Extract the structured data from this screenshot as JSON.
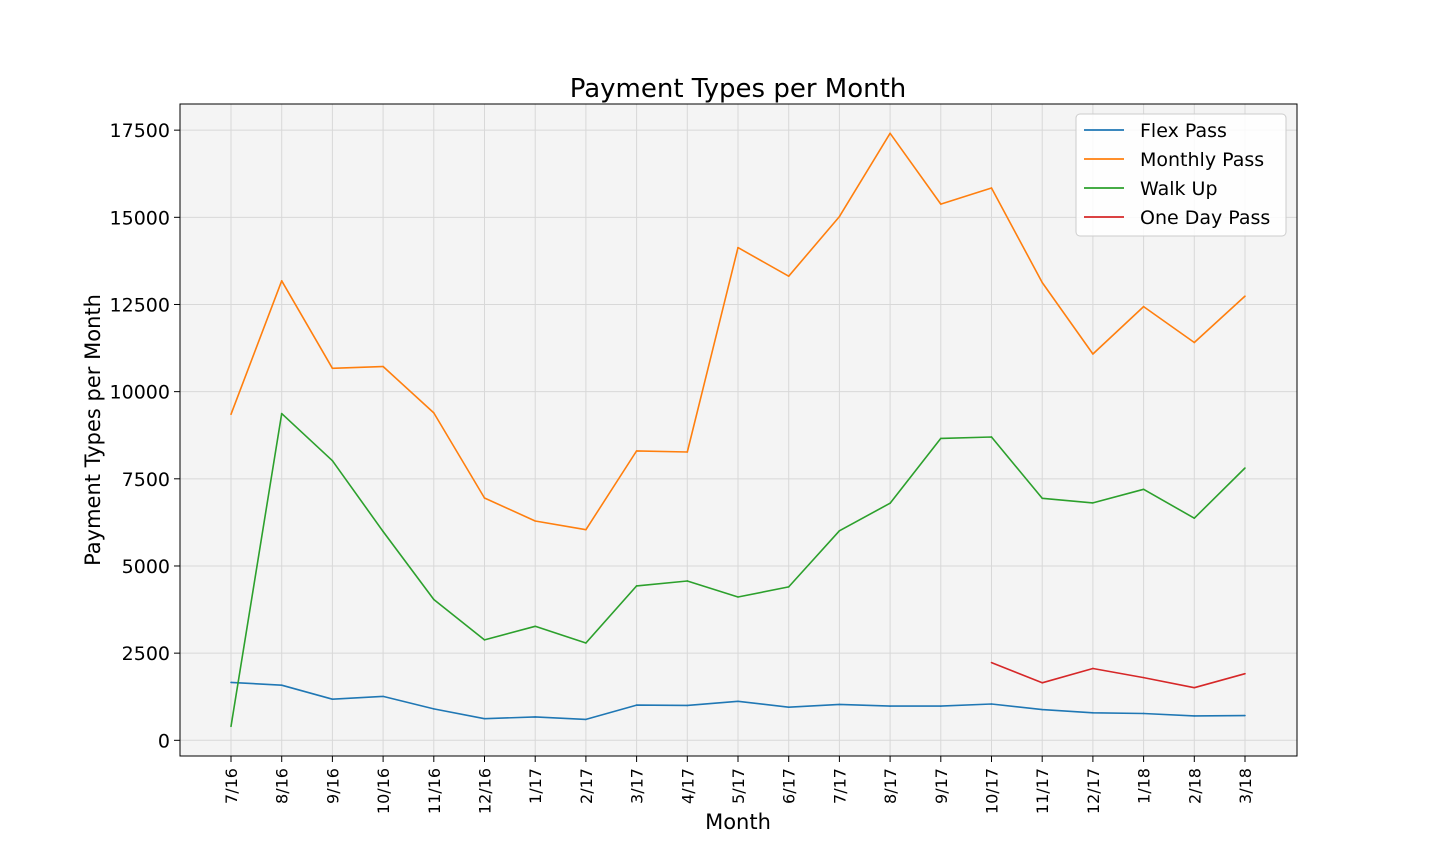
{
  "chart_data": {
    "type": "line",
    "title": "Payment Types per Month",
    "xlabel": "Month",
    "ylabel": "Payment Types per Month",
    "categories": [
      "7/16",
      "8/16",
      "9/16",
      "10/16",
      "11/16",
      "12/16",
      "1/17",
      "2/17",
      "3/17",
      "4/17",
      "5/17",
      "6/17",
      "7/17",
      "8/17",
      "9/17",
      "10/17",
      "11/17",
      "12/17",
      "1/18",
      "2/18",
      "3/18"
    ],
    "yticks": [
      0,
      2500,
      5000,
      7500,
      10000,
      12500,
      15000,
      17500
    ],
    "ylim": [
      -450,
      18250
    ],
    "grid": true,
    "legend_position": "top-right",
    "background": "#f4f4f4",
    "series": [
      {
        "name": "Flex Pass",
        "color": "#1f77b4",
        "values": [
          1660,
          1580,
          1180,
          1260,
          900,
          620,
          670,
          600,
          1010,
          1000,
          1120,
          950,
          1030,
          980,
          980,
          1040,
          880,
          790,
          770,
          700,
          710
        ]
      },
      {
        "name": "Monthly Pass",
        "color": "#ff7f0e",
        "values": [
          9350,
          13180,
          10670,
          10720,
          9390,
          6950,
          6290,
          6040,
          8300,
          8270,
          14130,
          13310,
          15020,
          17410,
          15380,
          15840,
          13130,
          11080,
          12440,
          11410,
          12740
        ]
      },
      {
        "name": "Walk Up",
        "color": "#2ca02c",
        "values": [
          400,
          9370,
          8020,
          5990,
          4040,
          2880,
          3270,
          2790,
          4430,
          4570,
          4110,
          4400,
          6010,
          6800,
          8660,
          8700,
          6940,
          6810,
          7200,
          6370,
          7810
        ]
      },
      {
        "name": "One Day Pass",
        "color": "#d62728",
        "values": [
          null,
          null,
          null,
          null,
          null,
          null,
          null,
          null,
          null,
          null,
          null,
          null,
          null,
          null,
          null,
          2230,
          1650,
          2060,
          1800,
          1510,
          1910
        ]
      }
    ]
  }
}
